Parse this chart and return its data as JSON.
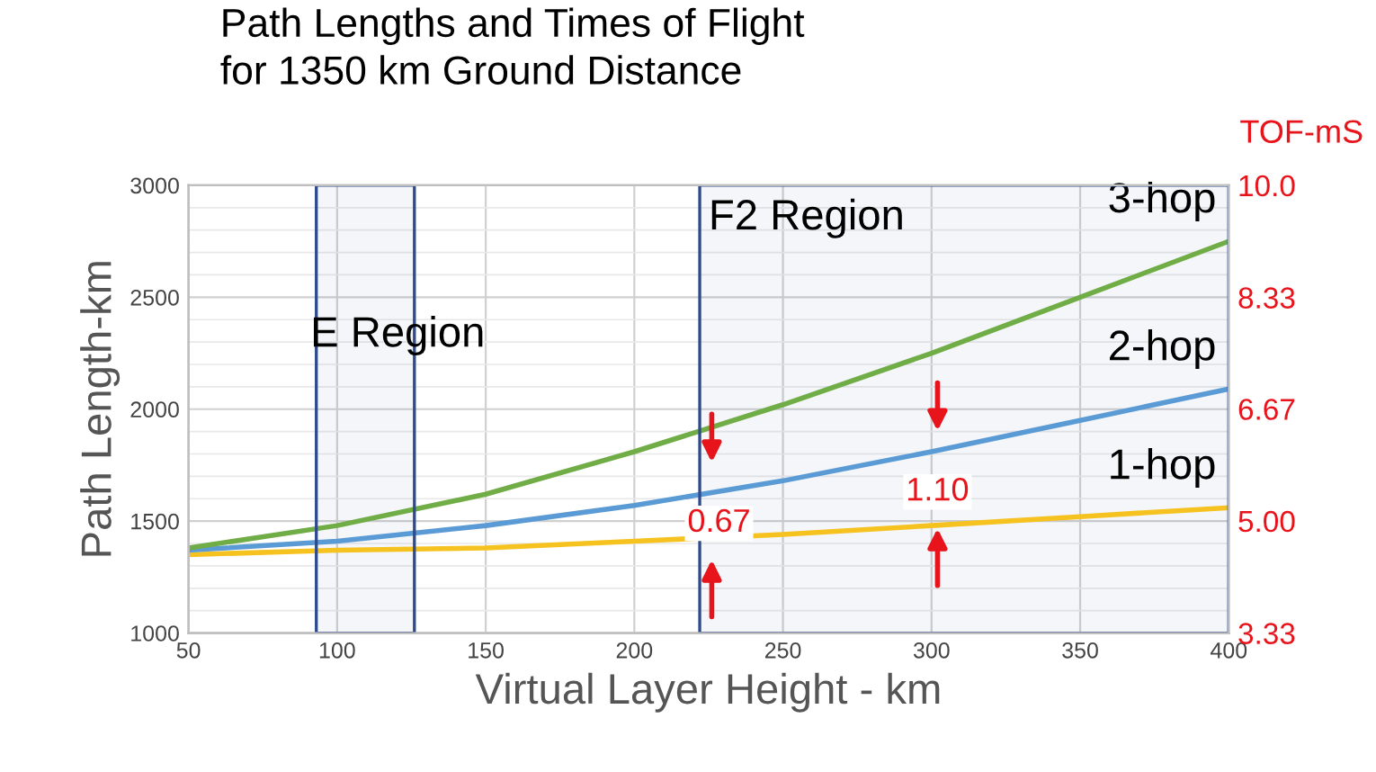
{
  "chart_data": {
    "type": "line",
    "title": "Path Lengths and Times of Flight\nfor 1350 km Ground Distance",
    "xlabel": "Virtual Layer Height - km",
    "ylabel": "Path Length-km",
    "y2label": "TOF-mS",
    "x": [
      50,
      100,
      150,
      200,
      250,
      300,
      350,
      400
    ],
    "series": [
      {
        "name": "1-hop",
        "color": "#f5c220",
        "values": [
          1350,
          1370,
          1380,
          1410,
          1440,
          1480,
          1520,
          1560
        ]
      },
      {
        "name": "2-hop",
        "color": "#5b9bd5",
        "values": [
          1370,
          1410,
          1480,
          1570,
          1680,
          1810,
          1950,
          2090
        ]
      },
      {
        "name": "3-hop",
        "color": "#70ad47",
        "values": [
          1380,
          1480,
          1620,
          1810,
          2020,
          2250,
          2500,
          2750
        ]
      }
    ],
    "xlim": [
      50,
      400
    ],
    "ylim": [
      1000,
      3000
    ],
    "xticks": [
      50,
      100,
      150,
      200,
      250,
      300,
      350,
      400
    ],
    "yticks": [
      1000,
      1500,
      2000,
      2500,
      3000
    ],
    "y2lim": [
      3.33,
      10.0
    ],
    "y2ticks": [
      3.33,
      {
        "value": 5.0,
        "label": "5.00"
      },
      6.67,
      8.33,
      {
        "value": 10.0,
        "label": "10.0"
      }
    ],
    "bands": [
      {
        "axis": "x",
        "from": 93,
        "to": 126,
        "label": "E Region",
        "color": "#2f4b8c"
      },
      {
        "axis": "x",
        "from": 222,
        "to": 400,
        "label": "F2 Region",
        "color": "#2f4b8c"
      }
    ],
    "annotations": [
      "0.67",
      "1.10"
    ],
    "grid": true,
    "marker": "none",
    "line_style": "solid"
  }
}
